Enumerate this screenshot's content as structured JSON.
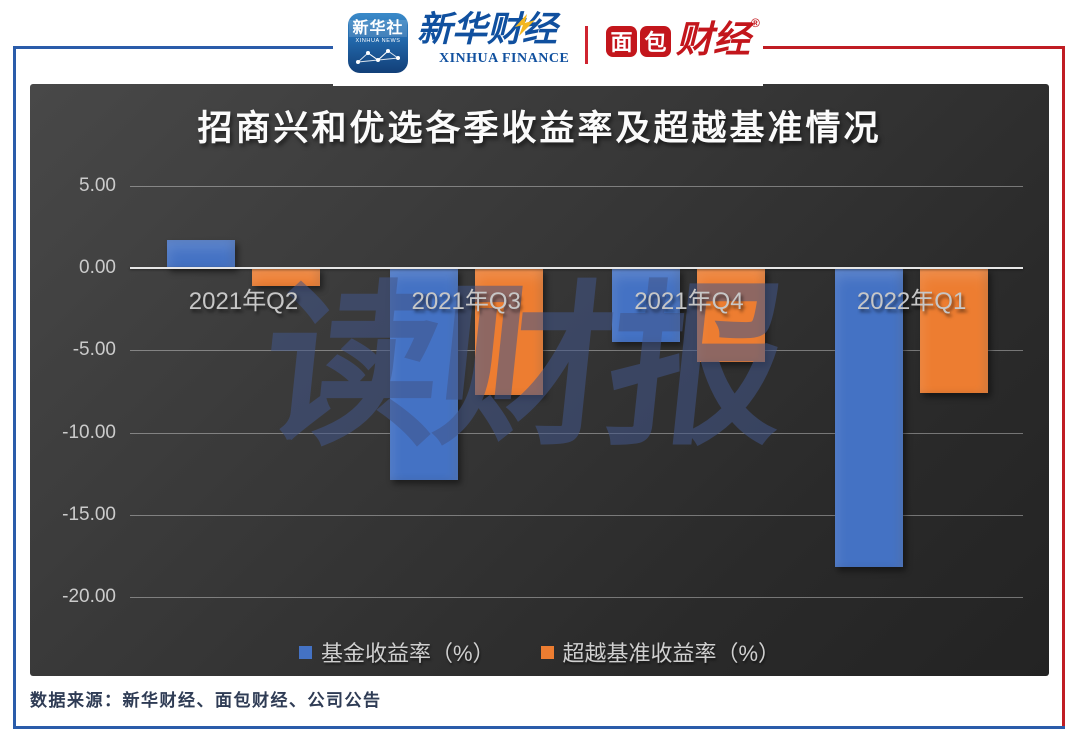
{
  "header": {
    "news_logo": {
      "cn": "新华社",
      "en": "XINHUA NEWS"
    },
    "finance_logo": {
      "cn": "新华财经",
      "en": "XINHUA FINANCE"
    },
    "bread_logo": {
      "white_chars": [
        "面",
        "包"
      ],
      "red_chars": "财经",
      "reg_mark": "®"
    }
  },
  "chart_data": {
    "type": "bar",
    "title": "招商兴和优选各季收益率及超越基准情况",
    "categories": [
      "2021年Q2",
      "2021年Q3",
      "2021年Q4",
      "2022年Q1"
    ],
    "series": [
      {
        "name": "基金收益率（%）",
        "color": "#4472c4",
        "values": [
          1.7,
          -12.9,
          -4.5,
          -18.2
        ]
      },
      {
        "name": "超越基准收益率（%）",
        "color": "#ed7d31",
        "values": [
          -1.1,
          -7.7,
          -5.7,
          -7.6
        ]
      }
    ],
    "y_ticks": [
      {
        "value": 5,
        "label": "5.00"
      },
      {
        "value": 0,
        "label": "0.00"
      },
      {
        "value": -5,
        "label": "-5.00"
      },
      {
        "value": -10,
        "label": "-10.00"
      },
      {
        "value": -15,
        "label": "-15.00"
      },
      {
        "value": -20,
        "label": "-20.00"
      }
    ],
    "ylim": [
      -22,
      6.3
    ],
    "grid": true,
    "legend_position": "bottom",
    "watermark": "读财报"
  },
  "footer": {
    "source": "数据来源：新华财经、面包财经、公司公告"
  },
  "colors": {
    "frame_blue": "#2a5caa",
    "frame_red": "#c01d23",
    "bar_blue": "#4472c4",
    "bar_orange": "#ed7d31",
    "watermark": "#42568a",
    "zero_line": "#e6e6e6",
    "axis_text": "#cbcbcb"
  }
}
